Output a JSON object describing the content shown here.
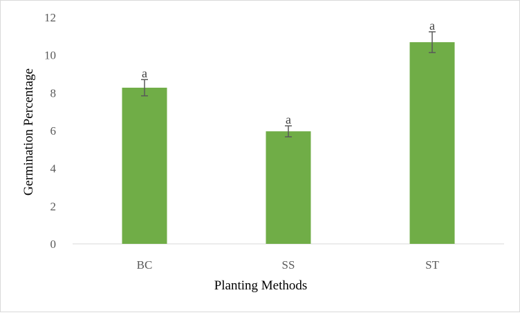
{
  "chart_data": {
    "type": "bar",
    "title": "",
    "xlabel": "Planting Methods",
    "ylabel": "Germination Percentage",
    "categories": [
      "BC",
      "SS",
      "ST"
    ],
    "values": [
      8.27,
      5.96,
      10.68
    ],
    "errors": [
      0.43,
      0.29,
      0.55
    ],
    "labels": [
      "a",
      "a",
      "a"
    ],
    "ylim": [
      0,
      12
    ],
    "yticks": [
      0,
      2,
      4,
      6,
      8,
      10,
      12
    ],
    "grid": false,
    "legend": "none",
    "bar_color": "#70AD47",
    "error_color": "#595959"
  }
}
